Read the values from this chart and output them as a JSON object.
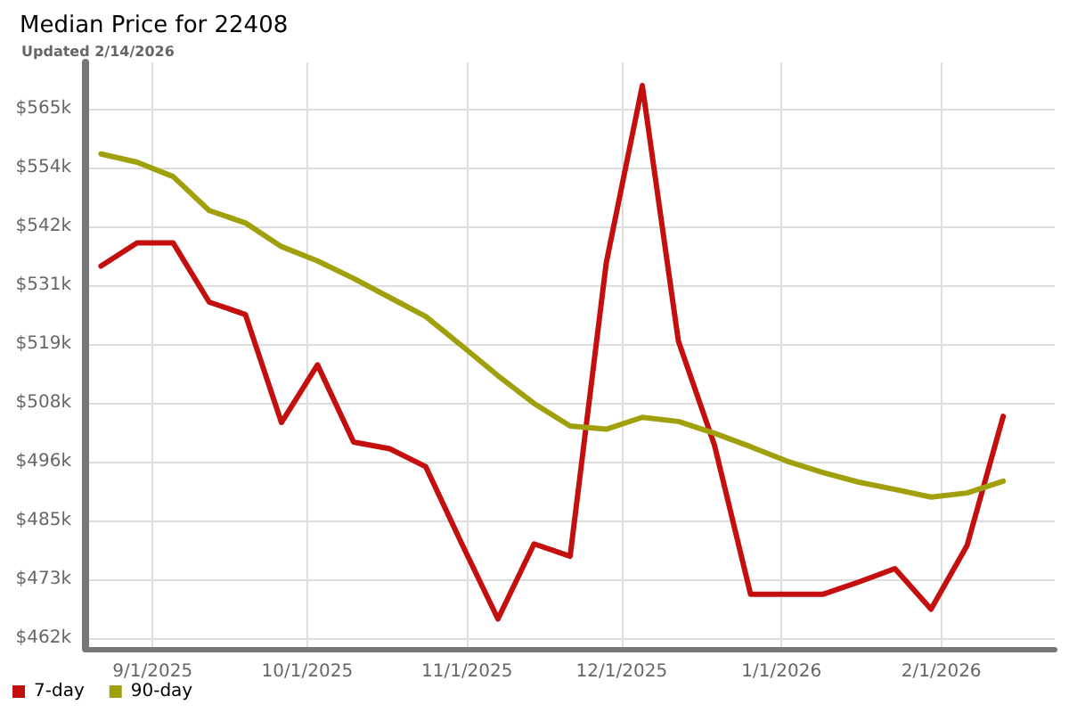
{
  "chart_data": {
    "type": "line",
    "title": "Median Price for 22408",
    "subtitle": "Updated 2/14/2026",
    "x": [
      "2025-08-22",
      "2025-08-29",
      "2025-09-05",
      "2025-09-12",
      "2025-09-19",
      "2025-09-26",
      "2025-10-03",
      "2025-10-10",
      "2025-10-17",
      "2025-10-24",
      "2025-10-31",
      "2025-11-07",
      "2025-11-14",
      "2025-11-21",
      "2025-11-28",
      "2025-12-05",
      "2025-12-12",
      "2025-12-19",
      "2025-12-26",
      "2026-01-02",
      "2026-01-09",
      "2026-01-16",
      "2026-01-23",
      "2026-01-30",
      "2026-02-06",
      "2026-02-13"
    ],
    "series": [
      {
        "name": "7-day",
        "color": "#c40f0f",
        "values": [
          534.4,
          538.9,
          538.9,
          527.4,
          525,
          504,
          515.2,
          500.2,
          498.9,
          495.4,
          480.4,
          465.8,
          480.4,
          478,
          535,
          569.5,
          519.8,
          499.6,
          470.6,
          470.6,
          470.6,
          473,
          475.6,
          467.7,
          480.1,
          505.2
        ]
      },
      {
        "name": "90-day",
        "color": "#a0a00c",
        "values": [
          556.2,
          554.6,
          551.8,
          545.2,
          542.8,
          538.2,
          535.4,
          532,
          528.3,
          524.6,
          518.9,
          513.1,
          507.7,
          503.3,
          502.7,
          505,
          504.2,
          501.9,
          499.3,
          496.5,
          494.3,
          492.4,
          491,
          489.5,
          490.3,
          492.6
        ]
      }
    ],
    "xlim": [
      "2025-08-19",
      "2026-02-23"
    ],
    "xticks": [
      {
        "value": "2025-09-01",
        "label": "9/1/2025"
      },
      {
        "value": "2025-10-01",
        "label": "10/1/2025"
      },
      {
        "value": "2025-11-01",
        "label": "11/1/2025"
      },
      {
        "value": "2025-12-01",
        "label": "12/1/2025"
      },
      {
        "value": "2026-01-01",
        "label": "1/1/2026"
      },
      {
        "value": "2026-02-01",
        "label": "2/1/2026"
      }
    ],
    "ylim": [
      460,
      574
    ],
    "yticks": [
      {
        "value": 462,
        "label": "$462k"
      },
      {
        "value": 473.44,
        "label": "$473k"
      },
      {
        "value": 484.89,
        "label": "$485k"
      },
      {
        "value": 496.33,
        "label": "$496k"
      },
      {
        "value": 507.78,
        "label": "$508k"
      },
      {
        "value": 519.22,
        "label": "$519k"
      },
      {
        "value": 530.67,
        "label": "$531k"
      },
      {
        "value": 542.11,
        "label": "$542k"
      },
      {
        "value": 553.56,
        "label": "$554k"
      },
      {
        "value": 565,
        "label": "$565k"
      }
    ],
    "grid": true,
    "legend": "bottom left",
    "marker": "none",
    "line_style": "solid"
  }
}
